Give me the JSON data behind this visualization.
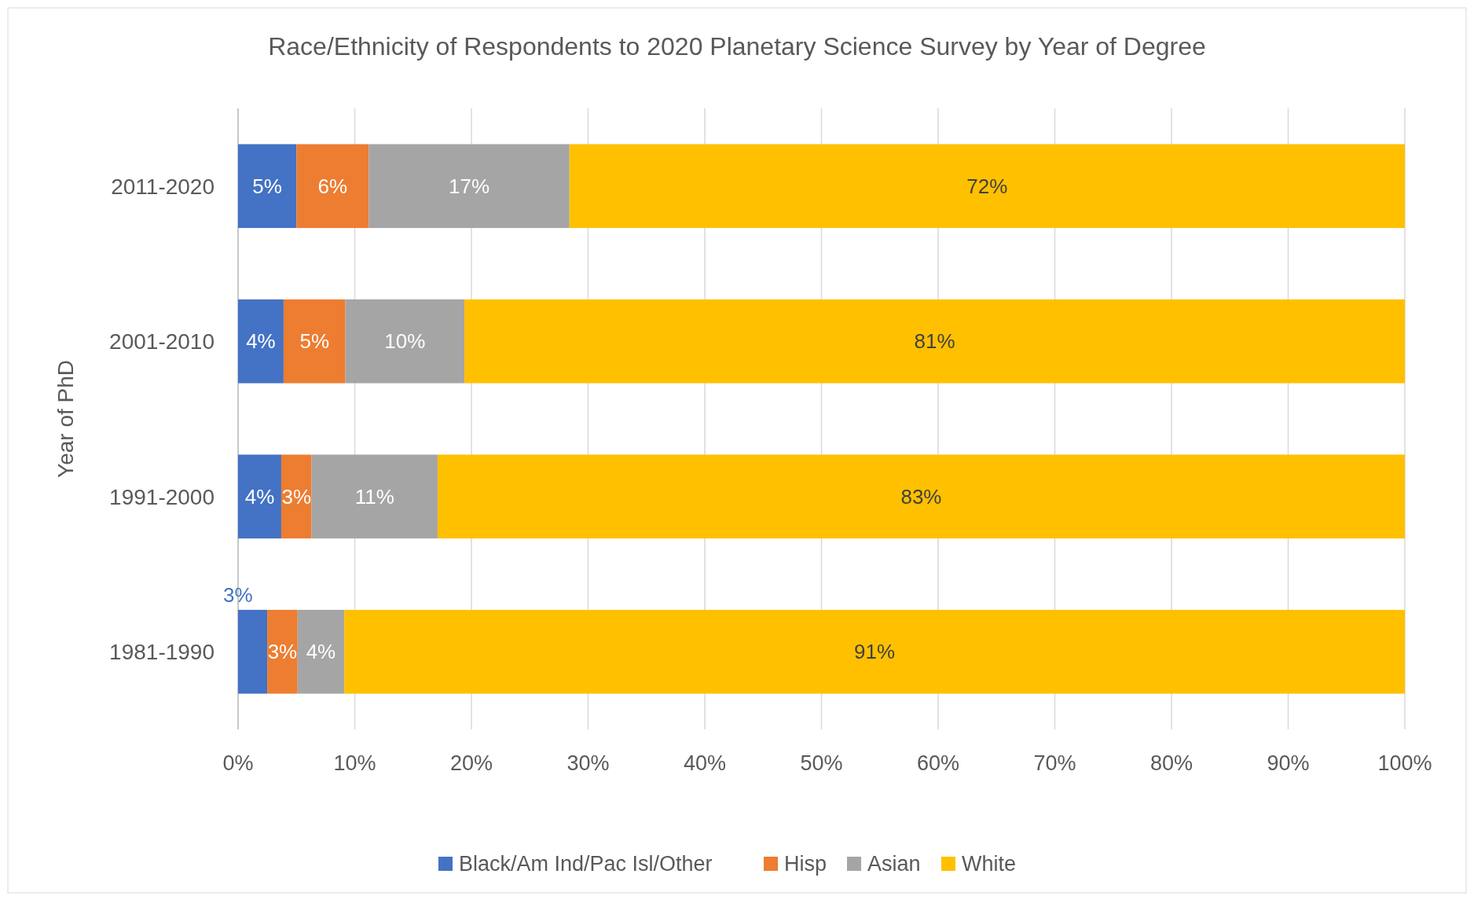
{
  "chart_data": {
    "type": "bar",
    "orientation": "horizontal",
    "stacked": true,
    "title": "Race/Ethnicity of Respondents to 2020  Planetary Science Survey by Year of Degree",
    "ylabel": "Year of PhD",
    "categories": [
      "2011-2020",
      "2001-2010",
      "1991-2000",
      "1981-1990"
    ],
    "series": [
      {
        "name": "Black/Am Ind/Pac Isl/Other",
        "color": "#4472c4",
        "values": [
          5.0,
          3.9,
          3.7,
          2.5
        ],
        "value_labels": [
          "5%",
          "4%",
          "4%",
          "3%"
        ]
      },
      {
        "name": "Hisp",
        "color": "#ed7d31",
        "values": [
          6.2,
          5.3,
          2.6,
          2.6
        ],
        "value_labels": [
          "6%",
          "5%",
          "3%",
          "3%"
        ]
      },
      {
        "name": "Asian",
        "color": "#a5a5a5",
        "values": [
          17.2,
          10.2,
          10.8,
          4.0
        ],
        "value_labels": [
          "17%",
          "10%",
          "11%",
          "4%"
        ]
      },
      {
        "name": "White",
        "color": "#ffc000",
        "values": [
          71.6,
          80.6,
          82.9,
          90.9
        ],
        "value_labels": [
          "72%",
          "81%",
          "83%",
          "91%"
        ]
      }
    ],
    "xlim": [
      0,
      100
    ],
    "xticks": [
      {
        "value": 0,
        "label": "0%"
      },
      {
        "value": 10,
        "label": "10%"
      },
      {
        "value": 20,
        "label": "20%"
      },
      {
        "value": 30,
        "label": "30%"
      },
      {
        "value": 40,
        "label": "40%"
      },
      {
        "value": 50,
        "label": "50%"
      },
      {
        "value": 60,
        "label": "60%"
      },
      {
        "value": 70,
        "label": "70%"
      },
      {
        "value": 80,
        "label": "80%"
      },
      {
        "value": 90,
        "label": "90%"
      },
      {
        "value": 100,
        "label": "100%"
      }
    ],
    "grid": "x",
    "legend": "bottom"
  }
}
